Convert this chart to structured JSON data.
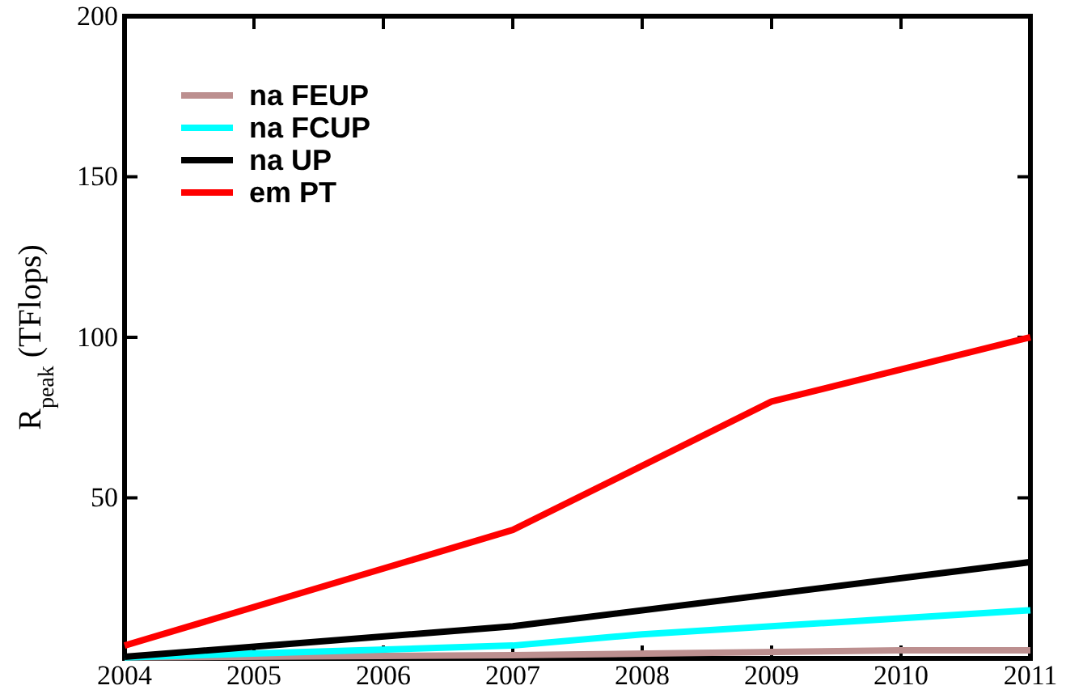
{
  "chart_data": {
    "type": "line",
    "ylabel": "R$_{peak}$ (TFlops)",
    "xlim": [
      2004,
      2011
    ],
    "xticks": [
      2004,
      2005,
      2006,
      2007,
      2008,
      2009,
      2010,
      2011
    ],
    "ylim": [
      0,
      200
    ],
    "yticks": [
      {
        "value": 0,
        "label": null
      },
      50,
      100,
      150,
      200
    ],
    "legend": "top left",
    "grid": false,
    "marker": "none",
    "line_style": "solid",
    "series": [
      {
        "name": "na FEUP",
        "color": "#bc8f8f",
        "x": [
          2004,
          2007,
          2010,
          2011
        ],
        "values": [
          0.3,
          1,
          2.5,
          2.5
        ]
      },
      {
        "name": "na FCUP",
        "color": "#00ffff",
        "x": [
          2004,
          2007,
          2008,
          2011
        ],
        "values": [
          0.3,
          4,
          7.5,
          15
        ]
      },
      {
        "name": "na UP",
        "color": "#000000",
        "x": [
          2004,
          2007,
          2011
        ],
        "values": [
          0.5,
          10,
          30
        ]
      },
      {
        "name": "em PT",
        "color": "#ff0000",
        "x": [
          2004,
          2007,
          2009,
          2011
        ],
        "values": [
          4,
          40,
          80,
          100
        ]
      }
    ]
  }
}
